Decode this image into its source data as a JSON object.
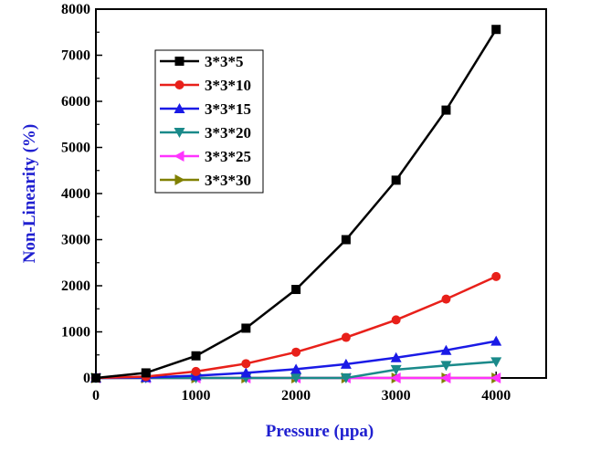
{
  "chart_data": {
    "type": "line",
    "xlabel": "Pressure (µpa)",
    "ylabel": "Non-Linearity (%)",
    "xlim": [
      0,
      4500
    ],
    "ylim": [
      0,
      8000
    ],
    "xticks": [
      0,
      1000,
      2000,
      3000,
      4000
    ],
    "yticks": [
      0,
      1000,
      2000,
      3000,
      4000,
      5000,
      6000,
      7000,
      8000
    ],
    "x": [
      0,
      500,
      1000,
      1500,
      2000,
      2500,
      3000,
      3500,
      4000
    ],
    "grid": false,
    "legend_position": "top-left",
    "series": [
      {
        "name": "3*3*5",
        "color": "#000000",
        "marker": "square",
        "values": [
          0,
          110,
          480,
          1080,
          1920,
          3000,
          4290,
          5810,
          7560
        ]
      },
      {
        "name": "3*3*10",
        "color": "#e8201a",
        "marker": "circle",
        "values": [
          0,
          30,
          140,
          310,
          560,
          880,
          1260,
          1710,
          2200
        ]
      },
      {
        "name": "3*3*15",
        "color": "#1a1ae6",
        "marker": "triangle-up",
        "values": [
          0,
          10,
          50,
          110,
          190,
          300,
          440,
          600,
          800
        ]
      },
      {
        "name": "3*3*20",
        "color": "#1a8a8a",
        "marker": "triangle-down",
        "values": [
          0,
          0,
          0,
          0,
          0,
          0,
          180,
          270,
          350
        ]
      },
      {
        "name": "3*3*25",
        "color": "#ff33ff",
        "marker": "triangle-left",
        "values": [
          0,
          0,
          0,
          0,
          0,
          0,
          0,
          0,
          0
        ]
      },
      {
        "name": "3*3*30",
        "color": "#808000",
        "marker": "triangle-right",
        "values": [
          0,
          0,
          0,
          0,
          0,
          0,
          0,
          0,
          0
        ]
      }
    ]
  },
  "style": {
    "axis_title_color": "#2020d0"
  }
}
